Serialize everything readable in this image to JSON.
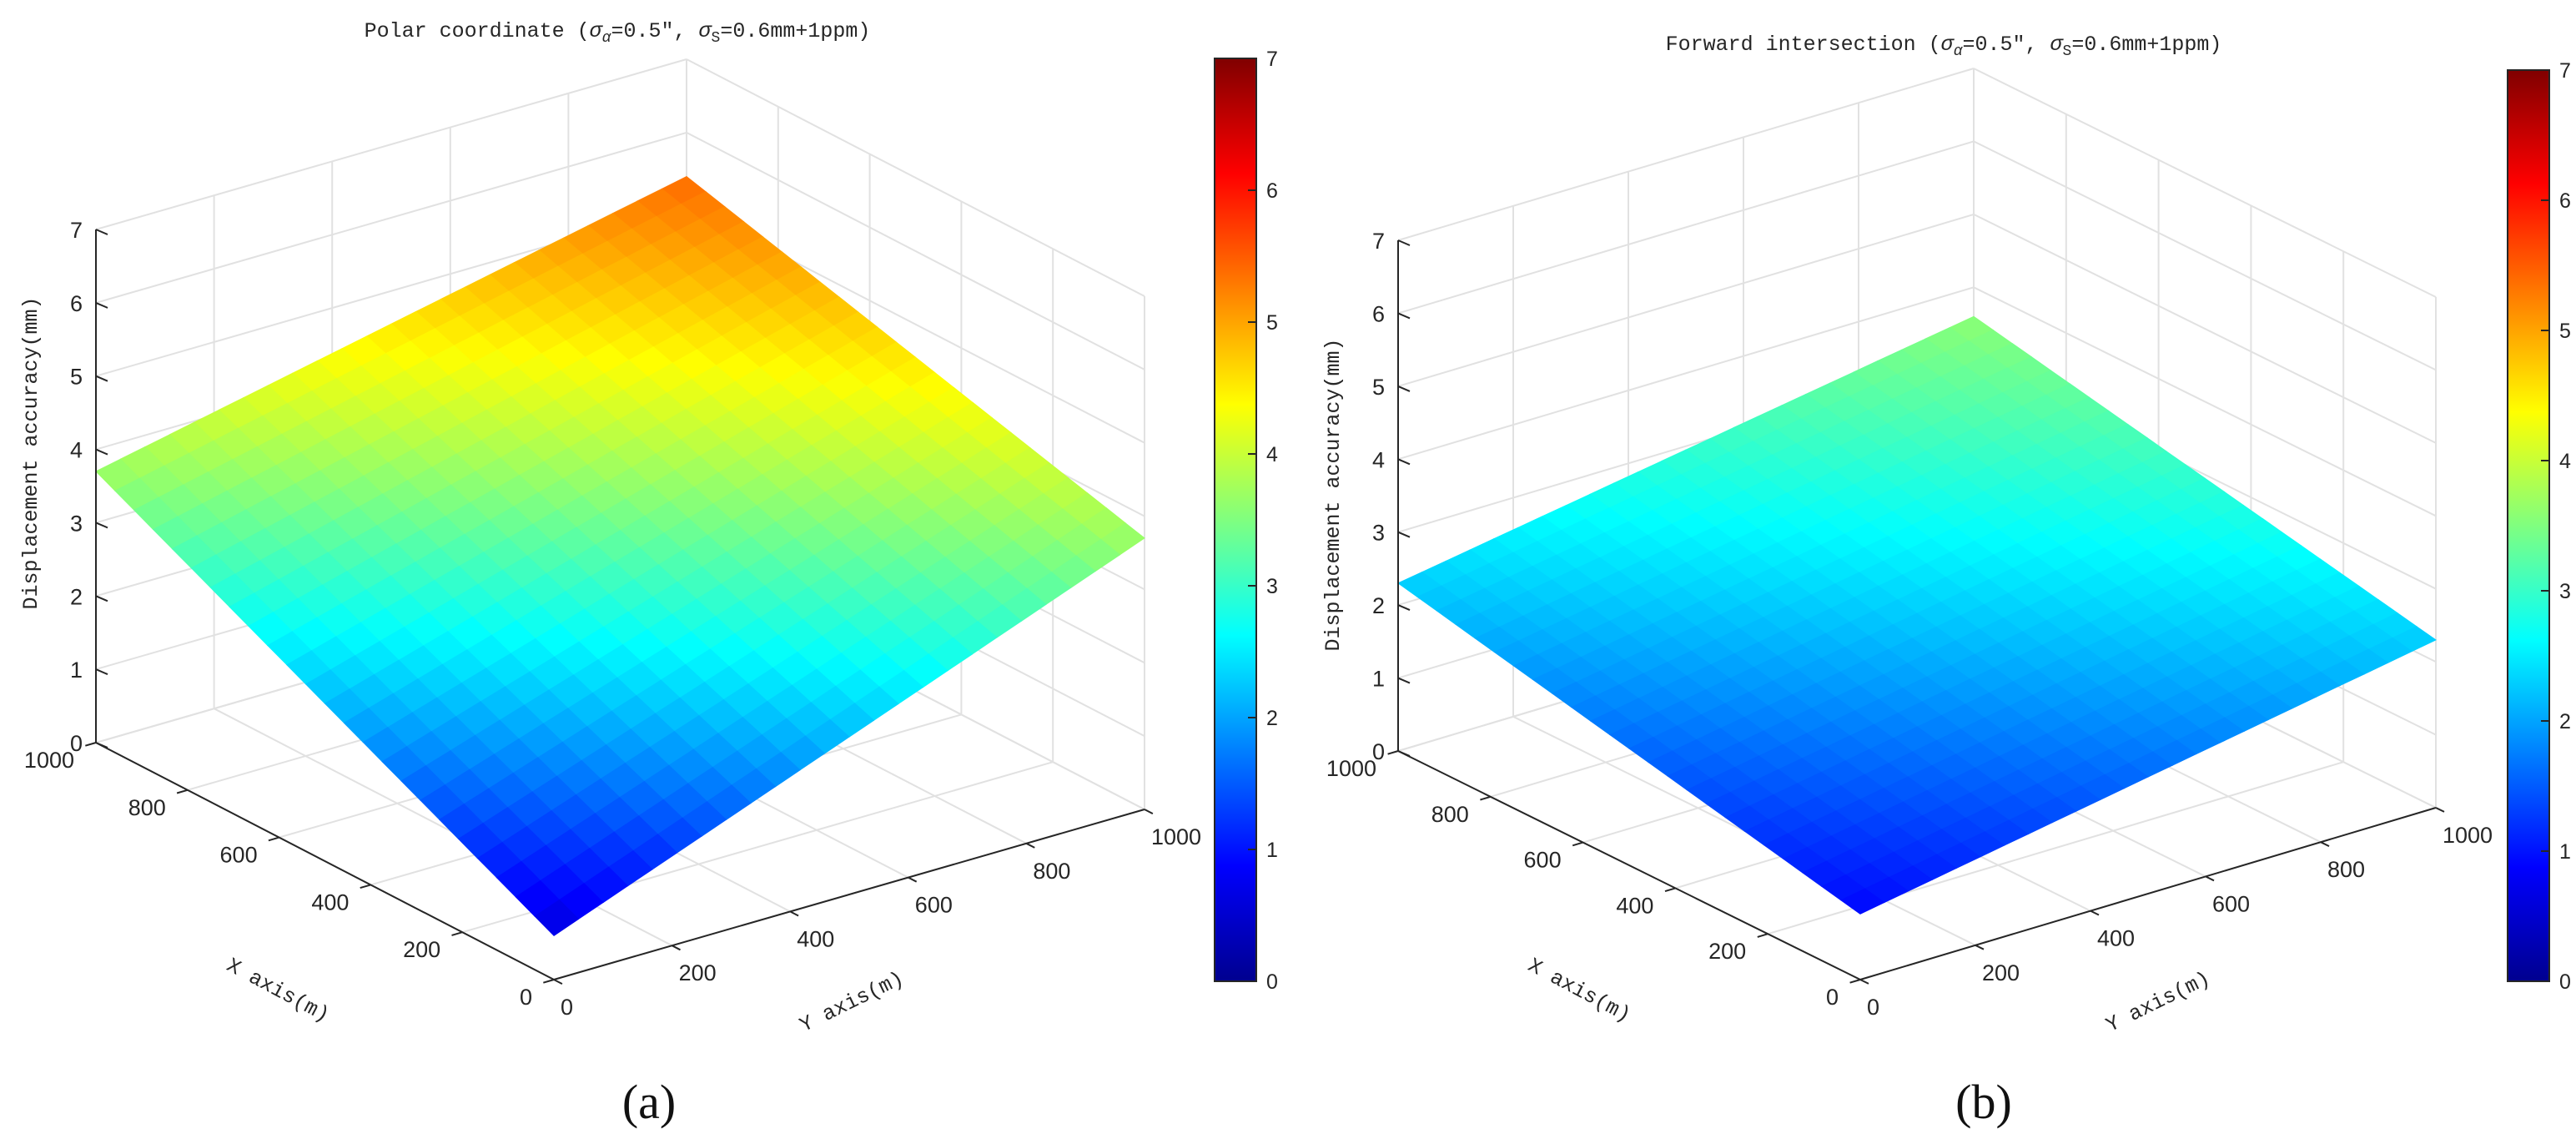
{
  "figure": {
    "panel_labels": [
      "(a)",
      "(b)"
    ],
    "colormap_name": "jet",
    "jet_colors": [
      "#00008f",
      "#0000ff",
      "#00ffff",
      "#ffff00",
      "#ff0000",
      "#800000"
    ]
  },
  "chart_data": [
    {
      "type": "surface",
      "panel": "(a)",
      "title": "Polar coordinate (σ_α=0.5″, σ_S=0.6mm+1ppm)",
      "title_parts": {
        "prefix": "Polar coordinate (",
        "sigma": "σ",
        "alpha_sub": "α",
        "alpha_value": "=0.5″, ",
        "s_sub": "S",
        "s_value": "=0.6mm+1ppm)"
      },
      "xlabel": "X axis(m)",
      "ylabel": "Y axis(m)",
      "zlabel": "Displacement accuracy(mm)",
      "xlim": [
        0,
        1000
      ],
      "ylim": [
        0,
        1000
      ],
      "zlim": [
        0,
        7
      ],
      "x_ticks": [
        "0",
        "200",
        "400",
        "600",
        "800",
        "1000"
      ],
      "y_ticks": [
        "0",
        "200",
        "400",
        "600",
        "800",
        "1000"
      ],
      "z_ticks": [
        "0",
        "1",
        "2",
        "3",
        "4",
        "5",
        "6",
        "7"
      ],
      "colorbar_ticks": [
        "0",
        "1",
        "2",
        "3",
        "4",
        "5",
        "6",
        "7"
      ],
      "colorbar_range": [
        0,
        7
      ],
      "x": [
        0,
        100,
        200,
        300,
        400,
        500,
        600,
        700,
        800,
        900,
        1000
      ],
      "y": [
        0,
        100,
        200,
        300,
        400,
        500,
        600,
        700,
        800,
        900,
        1000
      ],
      "z_corners": {
        "x0_y0": 0.6,
        "x1000_y0": 3.7,
        "x0_y1000": 3.7,
        "x1000_y1000": 5.4
      },
      "grid": true,
      "colorbar": "right"
    },
    {
      "type": "surface",
      "panel": "(b)",
      "title": "Forward intersection (σ_α=0.5″, σ_S=0.6mm+1ppm)",
      "title_parts": {
        "prefix": "Forward intersection (",
        "sigma": "σ",
        "alpha_sub": "α",
        "alpha_value": "=0.5″, ",
        "s_sub": "S",
        "s_value": "=0.6mm+1ppm)"
      },
      "xlabel": "X axis(m)",
      "ylabel": "Y axis(m)",
      "zlabel": "Displacement accuracy(mm)",
      "xlim": [
        0,
        1000
      ],
      "ylim": [
        0,
        1000
      ],
      "zlim": [
        0,
        7
      ],
      "x_ticks": [
        "0",
        "200",
        "400",
        "600",
        "800",
        "1000"
      ],
      "y_ticks": [
        "0",
        "200",
        "400",
        "600",
        "800",
        "1000"
      ],
      "z_ticks": [
        "0",
        "1",
        "2",
        "3",
        "4",
        "5",
        "6",
        "7"
      ],
      "colorbar_ticks": [
        "0",
        "1",
        "2",
        "3",
        "4",
        "5",
        "6",
        "7"
      ],
      "colorbar_range": [
        0,
        7
      ],
      "x": [
        0,
        100,
        200,
        300,
        400,
        500,
        600,
        700,
        800,
        900,
        1000
      ],
      "y": [
        0,
        100,
        200,
        300,
        400,
        500,
        600,
        700,
        800,
        900,
        1000
      ],
      "z_corners": {
        "x0_y0": 0.9,
        "x1000_y0": 2.3,
        "x0_y1000": 2.3,
        "x1000_y1000": 3.6
      },
      "grid": true,
      "colorbar": "right"
    }
  ]
}
